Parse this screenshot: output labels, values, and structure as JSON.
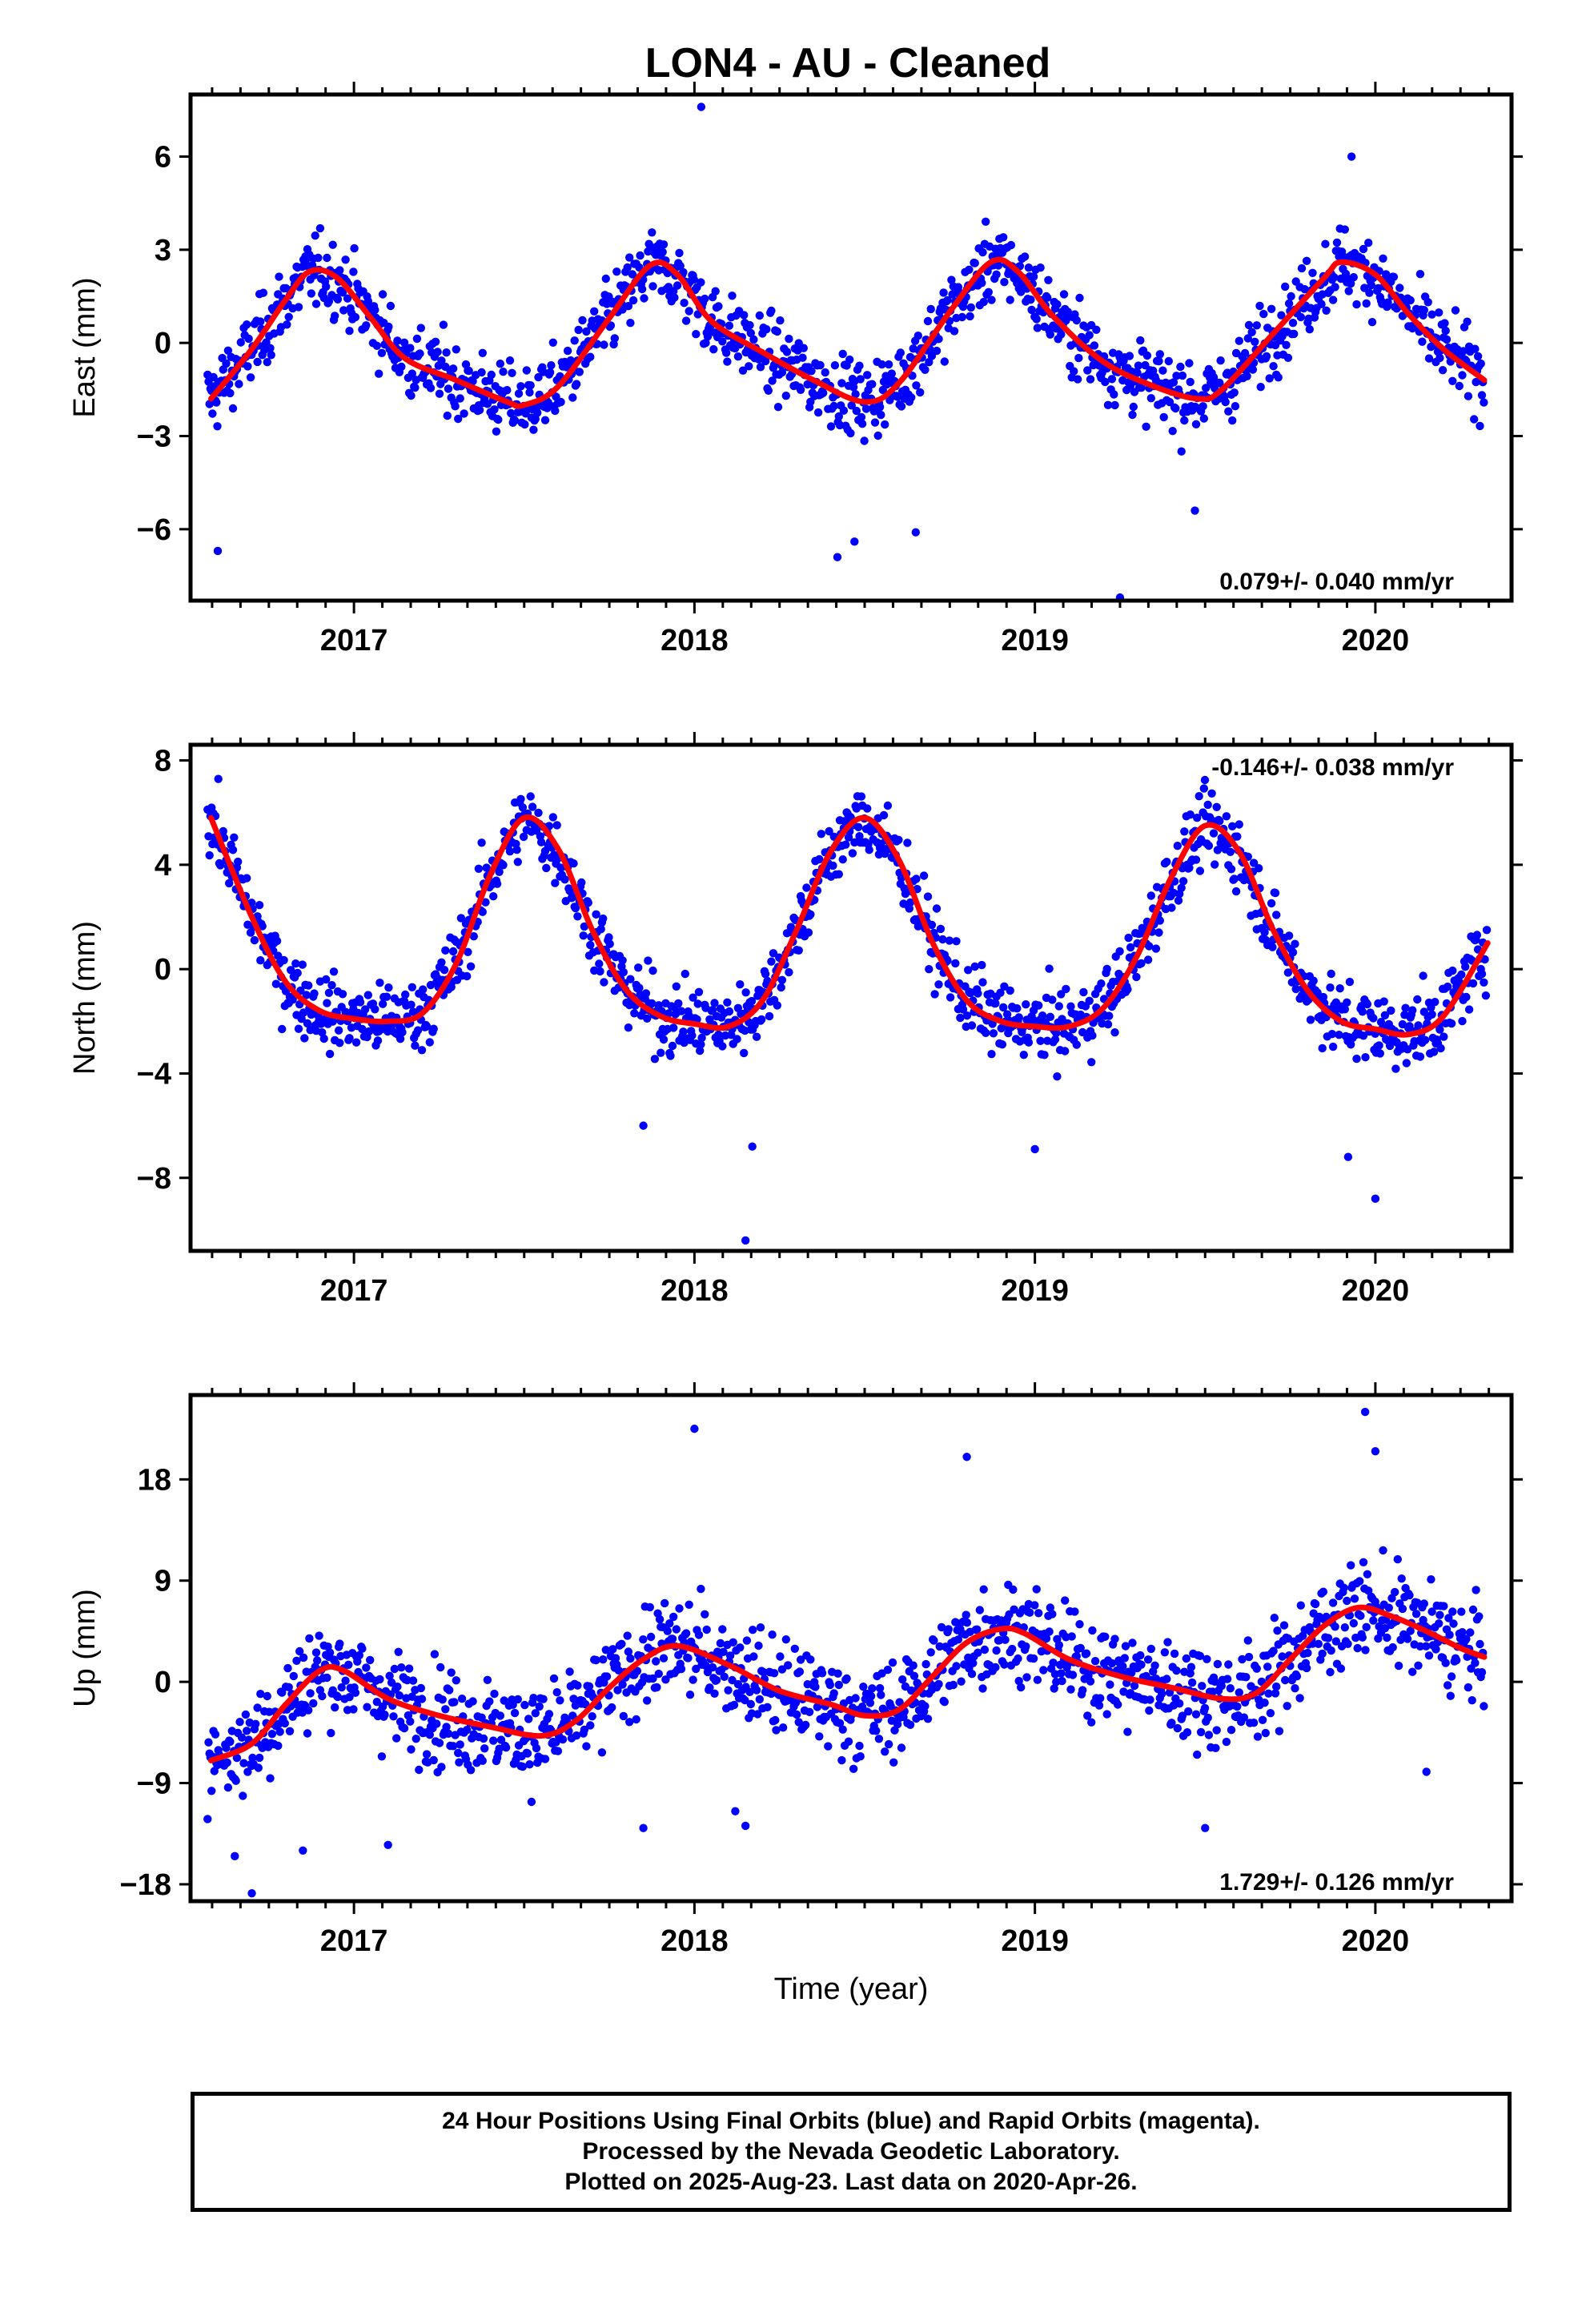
{
  "title": "LON4  - AU - Cleaned",
  "footer": {
    "line1": "24 Hour Positions Using Final Orbits (blue) and Rapid Orbits (magenta).",
    "line2": "Processed by the Nevada Geodetic Laboratory.",
    "line3": "Plotted on 2025-Aug-23. Last data on 2020-Apr-26."
  },
  "colors": {
    "points": "#0000ff",
    "model": "#ff0000",
    "frame": "#000000"
  },
  "chart_data": [
    {
      "type": "scatter",
      "name": "east",
      "ylabel": "East (mm)",
      "xlabel": "",
      "rate_label": "0.079+/- 0.040 mm/yr",
      "rate_position": "bottom-right",
      "xlim": [
        2016.52,
        2020.4
      ],
      "ylim": [
        -8.3,
        8.0
      ],
      "x_ticks": [
        2017,
        2018,
        2019,
        2020
      ],
      "y_ticks": [
        6,
        3,
        0,
        -3,
        -6
      ],
      "y_tick_labels": [
        "6",
        "3",
        "0",
        "−3",
        "−6"
      ],
      "model": {
        "color": "#ff0000",
        "x": [
          2016.58,
          2016.7,
          2016.8,
          2016.87,
          2016.95,
          2017.05,
          2017.15,
          2017.3,
          2017.45,
          2017.5,
          2017.6,
          2017.75,
          2017.87,
          2017.95,
          2018.05,
          2018.2,
          2018.35,
          2018.5,
          2018.6,
          2018.75,
          2018.87,
          2018.95,
          2019.05,
          2019.2,
          2019.35,
          2019.48,
          2019.55,
          2019.7,
          2019.85,
          2019.9,
          2020.0,
          2020.1,
          2020.2,
          2020.32
        ],
        "y": [
          -1.8,
          -0.2,
          1.4,
          2.3,
          2.1,
          0.8,
          -0.5,
          -1.2,
          -1.9,
          -2.0,
          -1.4,
          0.8,
          2.5,
          2.2,
          0.7,
          -0.3,
          -1.2,
          -1.9,
          -1.3,
          1.0,
          2.6,
          2.3,
          0.9,
          -0.6,
          -1.4,
          -1.8,
          -1.5,
          0.3,
          2.1,
          2.6,
          2.2,
          0.9,
          -0.2,
          -1.2
        ]
      },
      "annual_cycle": {
        "amplitude": 2.2,
        "peak_year_fraction": 0.88,
        "noise": 1.1
      },
      "outliers": [
        [
          2016.6,
          -6.7
        ],
        [
          2018.02,
          7.6
        ],
        [
          2018.42,
          -6.9
        ],
        [
          2018.47,
          -6.4
        ],
        [
          2019.25,
          -8.2
        ],
        [
          2019.47,
          -5.4
        ],
        [
          2019.93,
          6.0
        ],
        [
          2018.65,
          -6.1
        ]
      ]
    },
    {
      "type": "scatter",
      "name": "north",
      "ylabel": "North (mm)",
      "xlabel": "",
      "rate_label": "-0.146+/- 0.038 mm/yr",
      "rate_position": "top-right",
      "xlim": [
        2016.52,
        2020.4
      ],
      "ylim": [
        -10.8,
        8.6
      ],
      "x_ticks": [
        2017,
        2018,
        2019,
        2020
      ],
      "y_ticks": [
        8,
        4,
        0,
        -4,
        -8
      ],
      "y_tick_labels": [
        "8",
        "4",
        "0",
        "−4",
        "−8"
      ],
      "model": {
        "color": "#ff0000",
        "x": [
          2016.58,
          2016.7,
          2016.8,
          2016.9,
          2017.0,
          2017.1,
          2017.2,
          2017.3,
          2017.4,
          2017.5,
          2017.6,
          2017.7,
          2017.8,
          2017.9,
          2018.0,
          2018.1,
          2018.2,
          2018.3,
          2018.4,
          2018.5,
          2018.6,
          2018.7,
          2018.8,
          2018.9,
          2019.0,
          2019.1,
          2019.2,
          2019.3,
          2019.4,
          2019.5,
          2019.6,
          2019.7,
          2019.8,
          2019.9,
          2020.0,
          2020.1,
          2020.2,
          2020.33
        ],
        "y": [
          5.8,
          2.0,
          -0.5,
          -1.6,
          -1.9,
          -2.0,
          -1.7,
          0.2,
          3.6,
          5.8,
          4.6,
          1.5,
          -0.8,
          -1.8,
          -2.1,
          -2.2,
          -1.2,
          1.5,
          4.5,
          5.8,
          4.2,
          1.0,
          -1.2,
          -2.0,
          -2.2,
          -2.2,
          -1.5,
          0.5,
          3.5,
          5.5,
          4.5,
          1.5,
          -0.8,
          -2.0,
          -2.3,
          -2.5,
          -1.8,
          1.0
        ]
      },
      "annual_cycle": {
        "amplitude": 3.8,
        "peak_year_fraction": 0.52,
        "noise": 1.3
      },
      "outliers": [
        [
          2018.15,
          -10.4
        ],
        [
          2020.0,
          -8.8
        ],
        [
          2019.92,
          -7.2
        ],
        [
          2018.17,
          -6.8
        ],
        [
          2019.0,
          -6.9
        ],
        [
          2017.85,
          -6.0
        ]
      ]
    },
    {
      "type": "scatter",
      "name": "up",
      "ylabel": "Up (mm)",
      "xlabel": "Time (year)",
      "rate_label": "1.729+/- 0.126 mm/yr",
      "rate_position": "bottom-right",
      "xlim": [
        2016.52,
        2020.4
      ],
      "ylim": [
        -19.5,
        25.5
      ],
      "x_ticks": [
        2017,
        2018,
        2019,
        2020
      ],
      "y_ticks": [
        18,
        9,
        0,
        -9,
        -18
      ],
      "y_tick_labels": [
        "18",
        "9",
        "0",
        "−9",
        "−18"
      ],
      "model": {
        "color": "#ff0000",
        "x": [
          2016.58,
          2016.7,
          2016.8,
          2016.9,
          2016.97,
          2017.1,
          2017.25,
          2017.4,
          2017.55,
          2017.65,
          2017.75,
          2017.85,
          2017.95,
          2018.1,
          2018.25,
          2018.4,
          2018.5,
          2018.6,
          2018.7,
          2018.8,
          2018.9,
          2018.97,
          2019.1,
          2019.25,
          2019.4,
          2019.55,
          2019.65,
          2019.75,
          2019.85,
          2019.95,
          2020.05,
          2020.15,
          2020.25,
          2020.32
        ],
        "y": [
          -7.0,
          -5.5,
          -2.0,
          1.0,
          1.0,
          -1.5,
          -3.0,
          -4.0,
          -4.8,
          -3.5,
          -0.5,
          2.0,
          3.2,
          1.5,
          -0.8,
          -2.0,
          -3.0,
          -2.5,
          0.5,
          3.5,
          4.7,
          4.3,
          2.0,
          0.5,
          -0.5,
          -1.5,
          -1.0,
          2.0,
          5.0,
          6.6,
          5.8,
          4.5,
          3.0,
          2.2
        ]
      },
      "annual_cycle": {
        "amplitude": 2.0,
        "peak_year_fraction": 0.95,
        "noise": 4.0
      },
      "outliers": [
        [
          2016.7,
          -18.8
        ],
        [
          2016.65,
          -15.5
        ],
        [
          2016.85,
          -15.0
        ],
        [
          2017.1,
          -14.5
        ],
        [
          2017.85,
          -13.0
        ],
        [
          2018.0,
          22.5
        ],
        [
          2018.8,
          20.0
        ],
        [
          2019.97,
          24.0
        ],
        [
          2020.0,
          20.5
        ],
        [
          2018.15,
          -12.8
        ],
        [
          2018.12,
          -11.5
        ],
        [
          2019.5,
          -13.0
        ],
        [
          2020.15,
          -8.0
        ]
      ]
    }
  ]
}
